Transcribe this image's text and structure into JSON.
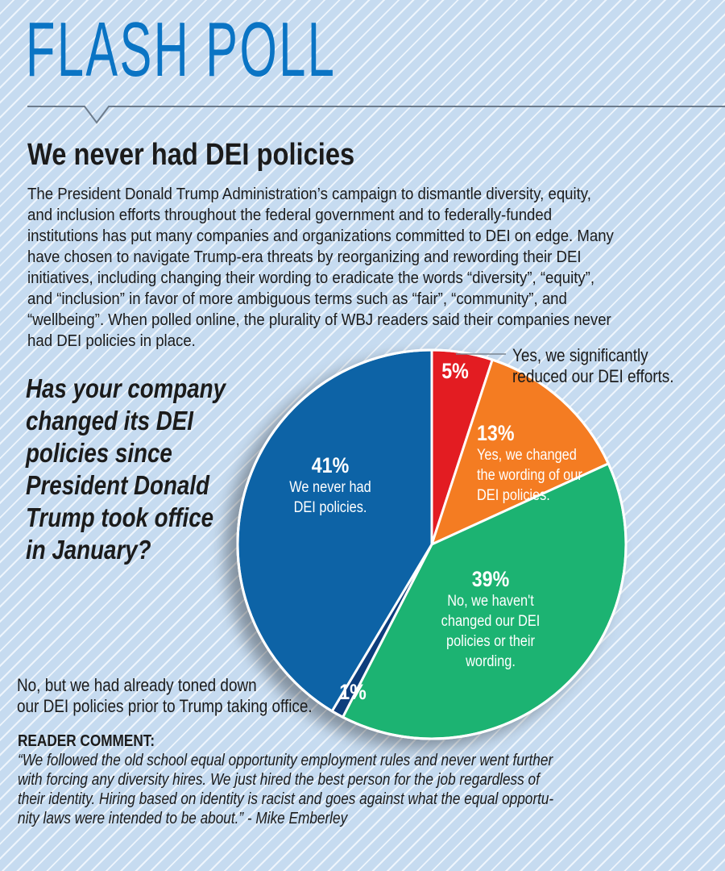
{
  "header": {
    "masthead": "FLASH POLL",
    "headline": "We never had DEI policies"
  },
  "intro": {
    "lines": [
      "The President Donald Trump Administration’s campaign to dismantle diversity, equity,",
      "and inclusion efforts throughout the federal government and to federally-funded",
      "institutions has put many companies and organizations committed to DEI on edge. Many",
      "have chosen to navigate Trump-era threats by reorganizing and rewording their DEI",
      "initiatives, including changing their wording to eradicate the words “diversity”, “equity”,",
      "and “inclusion” in favor of more ambiguous terms such as “fair”, “community”, and",
      "“wellbeing”. When polled online, the plurality of WBJ readers said their companies never",
      "had DEI policies in place."
    ]
  },
  "question": {
    "lines": [
      "Has your company",
      "changed its DEI",
      "policies since",
      "President Donald",
      "Trump took office",
      "in January?"
    ]
  },
  "chart_data": {
    "type": "pie",
    "title": "Has your company changed its DEI policies since President Donald Trump took office in January?",
    "start_angle_deg": 0,
    "direction": "clockwise",
    "slices": [
      {
        "label": "Yes, we significantly reduced our DEI efforts.",
        "value": 5,
        "pct_label": "5%",
        "color": "#e31b23"
      },
      {
        "label": "Yes, we changed the wording of our DEI policies.",
        "value": 13,
        "pct_label": "13%",
        "color": "#f47b20"
      },
      {
        "label": "No, we haven't changed our DEI policies or their wording.",
        "value": 39,
        "pct_label": "39%",
        "color": "#1db372"
      },
      {
        "label": "No, but we had already toned down our DEI policies prior to Trump taking office.",
        "value": 1,
        "pct_label": "1%",
        "color": "#0b3d7c"
      },
      {
        "label": "We never had DEI policies.",
        "value": 41,
        "pct_label": "41%",
        "color": "#0a63a6"
      }
    ],
    "inside_labels": {
      "s41": {
        "pct": "41%",
        "lines": [
          "We never had",
          "DEI policies."
        ]
      },
      "s13": {
        "pct": "13%",
        "lines": [
          "Yes, we changed",
          "the wording of our",
          "DEI policies."
        ]
      },
      "s39": {
        "pct": "39%",
        "lines": [
          "No, we haven't",
          "changed our DEI",
          "policies or their",
          "wording."
        ]
      },
      "s5": {
        "pct": "5%"
      },
      "s1": {
        "pct": "1%"
      }
    },
    "outside_labels": {
      "s5": [
        "Yes, we significantly",
        "reduced our DEI efforts."
      ],
      "s1": [
        "No, but we had already toned down",
        "our DEI policies prior to Trump taking office."
      ]
    }
  },
  "comment": {
    "title": "READER COMMENT:",
    "lines": [
      "“We followed the old school equal opportunity employment rules and never went further",
      "with forcing any diversity hires. We just hired the best person for the job regardless of",
      "their identity. Hiring based on identity is racist and goes against what the equal opportu-",
      "nity laws were intended to be about.” - Mike Emberley"
    ]
  }
}
